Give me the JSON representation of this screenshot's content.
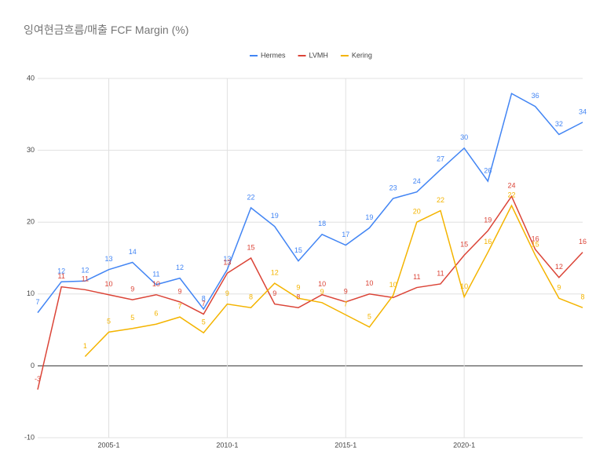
{
  "chart_data": {
    "type": "line",
    "title": "잉여현금흐름/매출 FCF Margin (%)",
    "categories": [
      null,
      null,
      null,
      "2005-1",
      null,
      null,
      null,
      null,
      "2010-1",
      null,
      null,
      null,
      null,
      "2015-1",
      null,
      null,
      null,
      null,
      "2020-1",
      null,
      null,
      null,
      null,
      null
    ],
    "series": [
      {
        "name": "Hermes",
        "color": "#4285f4",
        "values": [
          7.4,
          11.7,
          11.8,
          13.4,
          14.4,
          11.3,
          12.2,
          7.9,
          13.4,
          22.0,
          19.4,
          14.6,
          18.3,
          16.8,
          19.2,
          23.3,
          24.2,
          27.3,
          30.3,
          25.7,
          37.9,
          36.1,
          32.2,
          33.9
        ],
        "value_labels": [
          "7",
          "12",
          "12",
          "13",
          "14",
          "11",
          "12",
          "8",
          "13",
          "22",
          "19",
          "15",
          "18",
          "17",
          "19",
          "23",
          "24",
          "27",
          "30",
          "26",
          null,
          "36",
          "32",
          "34"
        ]
      },
      {
        "name": "LVMH",
        "color": "#db4437",
        "values": [
          -3.3,
          11.0,
          10.6,
          9.9,
          9.2,
          9.9,
          8.9,
          7.2,
          12.9,
          15.0,
          8.6,
          8.1,
          9.9,
          8.9,
          10.0,
          9.5,
          10.9,
          11.4,
          15.4,
          18.8,
          23.6,
          16.2,
          12.3,
          15.8
        ],
        "value_labels": [
          "-3",
          "11",
          "11",
          "10",
          "9",
          "10",
          "9",
          "7",
          "13",
          "15",
          "9",
          "8",
          "10",
          "9",
          "10",
          null,
          "11",
          "11",
          "15",
          "19",
          "24",
          "16",
          "12",
          "16"
        ]
      },
      {
        "name": "Kering",
        "color": "#f4b400",
        "values": [
          null,
          null,
          1.3,
          4.7,
          5.2,
          5.8,
          6.8,
          4.6,
          8.6,
          8.1,
          11.5,
          9.4,
          8.8,
          7.1,
          5.4,
          9.8,
          20.0,
          21.6,
          9.6,
          15.8,
          22.3,
          15.4,
          9.4,
          8.1
        ],
        "value_labels": [
          null,
          null,
          "1",
          "5",
          "5",
          "6",
          "7",
          "5",
          "9",
          "8",
          "12",
          "9",
          "9",
          "7",
          "5",
          "10",
          "20",
          "22",
          "10",
          "16",
          "22",
          "15",
          "9",
          "8"
        ]
      }
    ],
    "ylim": [
      -10,
      40
    ],
    "yticks": [
      -10,
      0,
      10,
      20,
      30,
      40
    ],
    "grid": true,
    "legend": "top"
  }
}
